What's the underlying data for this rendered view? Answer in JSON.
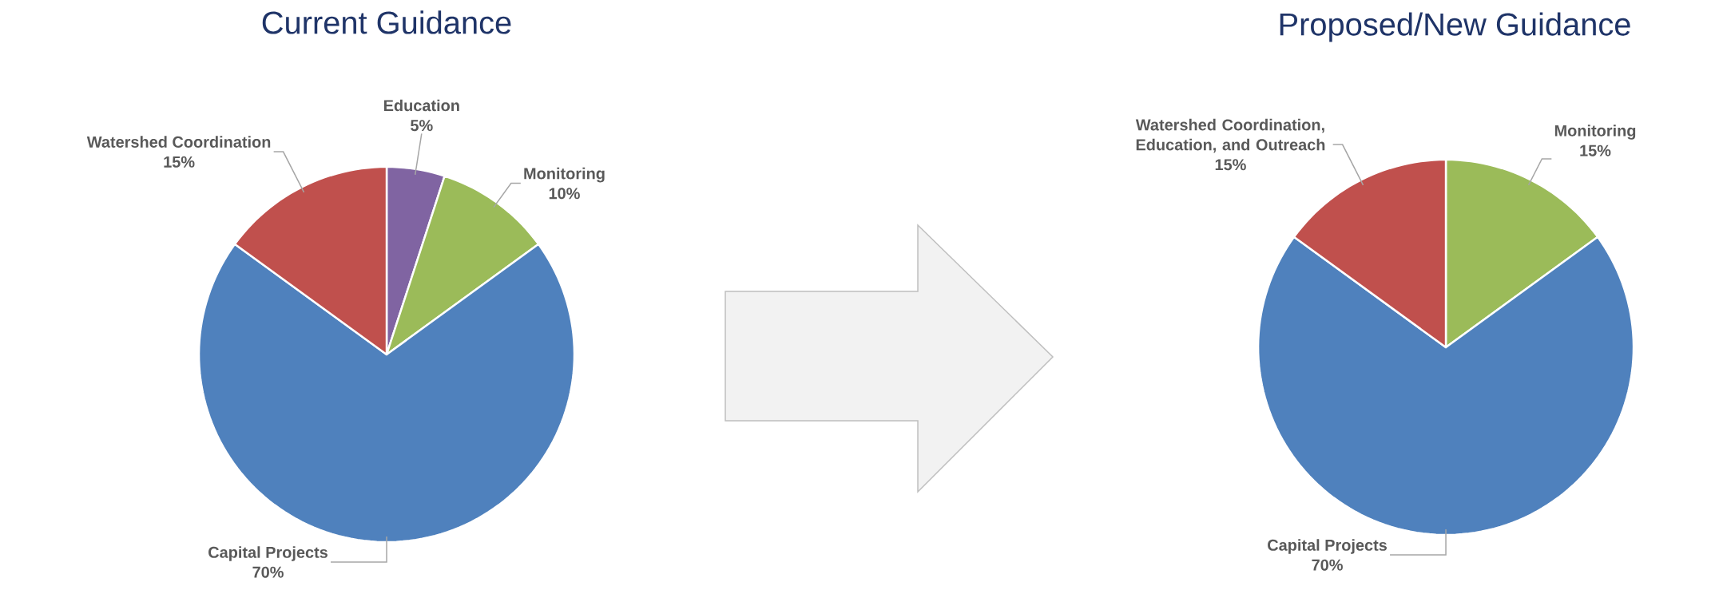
{
  "chart_data": [
    {
      "type": "pie",
      "title": "Current Guidance",
      "categories": [
        "Education",
        "Monitoring",
        "Capital Projects",
        "Watershed Coordination"
      ],
      "values": [
        5,
        10,
        70,
        15
      ],
      "value_labels": [
        "5%",
        "10%",
        "70%",
        "15%"
      ],
      "colors": [
        "#8064a2",
        "#9bbb59",
        "#4f81bd",
        "#c0504d"
      ]
    },
    {
      "type": "pie",
      "title": "Proposed/New Guidance",
      "categories": [
        "Monitoring",
        "Capital Projects",
        "Watershed Coordination, Education, and Outreach"
      ],
      "values": [
        15,
        70,
        15
      ],
      "value_labels": [
        "15%",
        "70%",
        "15%"
      ],
      "colors": [
        "#9bbb59",
        "#4f81bd",
        "#c0504d"
      ]
    }
  ]
}
